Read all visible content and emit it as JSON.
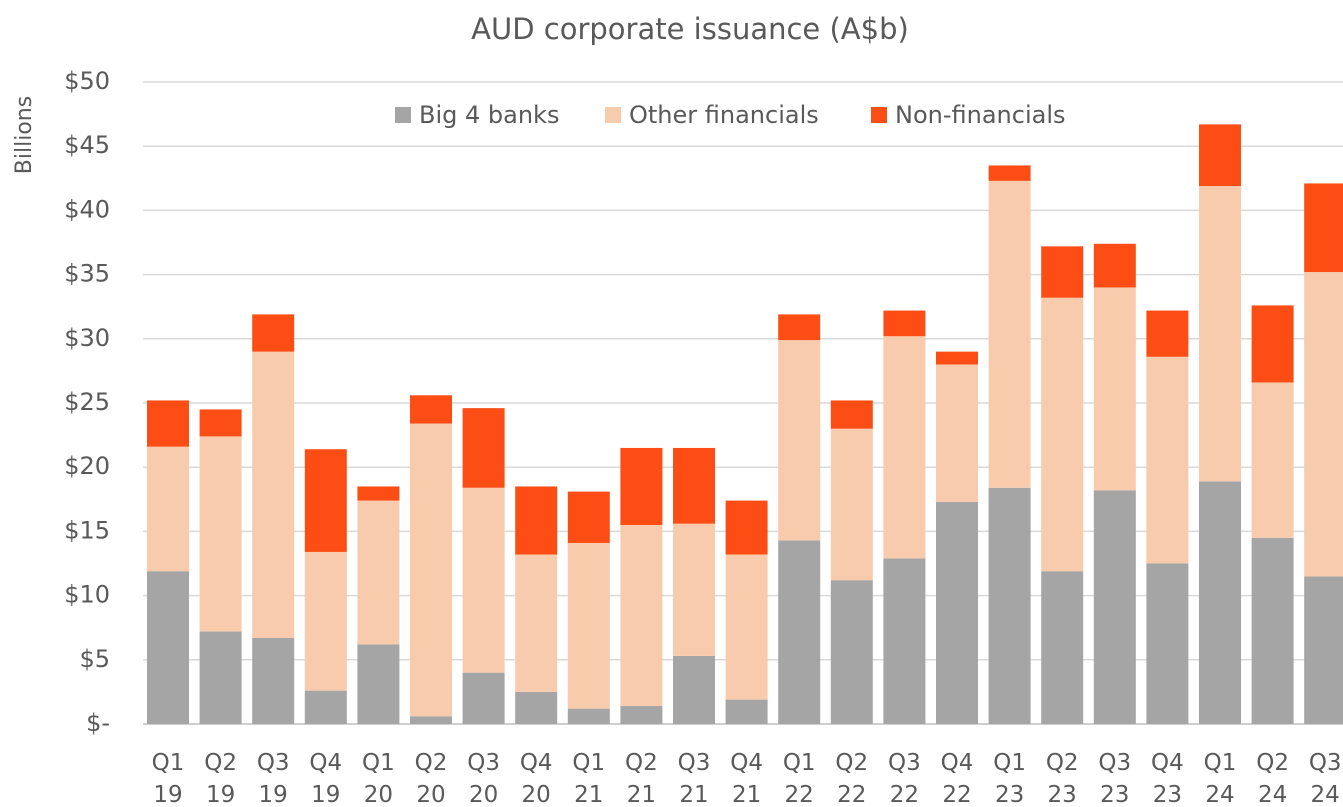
{
  "chart_data": {
    "type": "stacked_bar",
    "title": "AUD corporate issuance (A$b)",
    "y_label": "Billions",
    "categories": [
      "Q1 19",
      "Q2 19",
      "Q3 19",
      "Q4 19",
      "Q1 20",
      "Q2 20",
      "Q3 20",
      "Q4 20",
      "Q1 21",
      "Q2 21",
      "Q3 21",
      "Q4 21",
      "Q1 22",
      "Q2 22",
      "Q3 22",
      "Q4 22",
      "Q1 23",
      "Q2 23",
      "Q3 23",
      "Q4 23",
      "Q1 24",
      "Q2 24",
      "Q3 24"
    ],
    "series": [
      {
        "name": "Big 4 banks",
        "color": "#a5a5a5",
        "values": [
          11.9,
          7.2,
          6.7,
          2.6,
          6.2,
          0.6,
          4.0,
          2.5,
          1.2,
          1.4,
          5.3,
          1.9,
          14.3,
          11.2,
          12.9,
          17.3,
          18.4,
          11.9,
          18.2,
          12.5,
          18.9,
          14.5,
          11.5
        ]
      },
      {
        "name": "Other financials",
        "color": "#f8cbad",
        "values": [
          9.7,
          15.2,
          22.3,
          10.8,
          11.2,
          22.8,
          14.4,
          10.7,
          12.9,
          14.1,
          10.3,
          11.3,
          15.6,
          11.8,
          17.3,
          10.7,
          23.9,
          21.3,
          15.8,
          16.1,
          23.0,
          12.1,
          23.7
        ]
      },
      {
        "name": "Non-financials",
        "color": "#fc4e14",
        "values": [
          3.6,
          2.1,
          2.9,
          8.0,
          1.1,
          2.2,
          6.2,
          5.3,
          4.0,
          6.0,
          5.9,
          4.2,
          2.0,
          2.2,
          2.0,
          1.0,
          1.2,
          4.0,
          3.4,
          3.6,
          4.8,
          6.0,
          6.9
        ]
      }
    ],
    "ylim": [
      0,
      50
    ],
    "yticks": [
      {
        "value": 0,
        "label": "$-"
      },
      {
        "value": 5,
        "label": "$5"
      },
      {
        "value": 10,
        "label": "$10"
      },
      {
        "value": 15,
        "label": "$15"
      },
      {
        "value": 20,
        "label": "$20"
      },
      {
        "value": 25,
        "label": "$25"
      },
      {
        "value": 30,
        "label": "$30"
      },
      {
        "value": 35,
        "label": "$35"
      },
      {
        "value": 40,
        "label": "$40"
      },
      {
        "value": 45,
        "label": "$45"
      },
      {
        "value": 50,
        "label": "$50"
      }
    ],
    "grid": true,
    "legend": "top"
  }
}
